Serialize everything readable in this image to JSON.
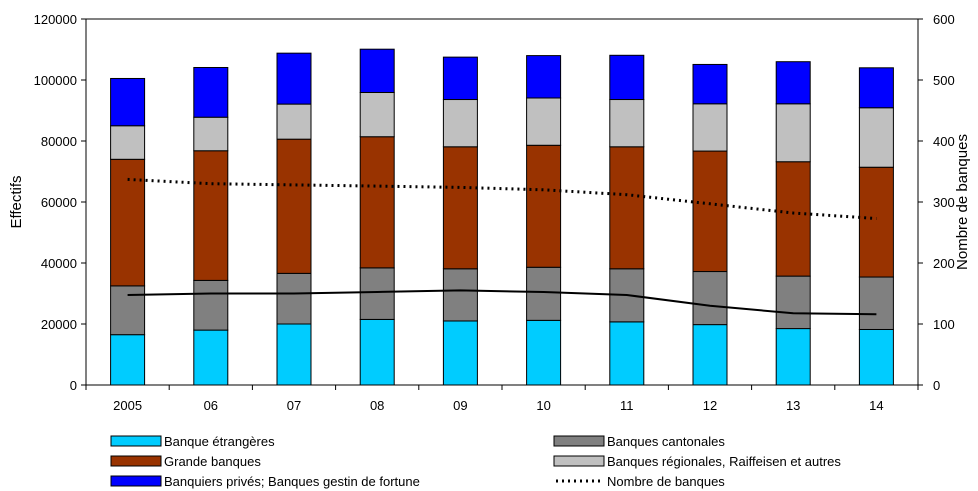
{
  "chart_data": {
    "type": "bar",
    "stacked": true,
    "categories": [
      "2005",
      "06",
      "07",
      "08",
      "09",
      "10",
      "11",
      "12",
      "13",
      "14"
    ],
    "ylabel": "Effectifs",
    "y2label": "Nombre de banques",
    "ylim": [
      0,
      120000
    ],
    "y2lim": [
      0,
      600
    ],
    "yticks": [
      0,
      20000,
      40000,
      60000,
      80000,
      100000,
      120000
    ],
    "y2ticks": [
      0,
      100,
      200,
      300,
      400,
      500,
      600
    ],
    "grid": false,
    "legend_position": "bottom",
    "series": [
      {
        "name": "Banque étrangères",
        "color": "#00ccff",
        "values": [
          16500,
          18000,
          20000,
          21500,
          21000,
          21200,
          20700,
          19800,
          18500,
          18200
        ]
      },
      {
        "name": "Banques cantonales",
        "color": "#808080",
        "values": [
          16000,
          16300,
          16600,
          16900,
          17100,
          17400,
          17400,
          17400,
          17200,
          17200
        ]
      },
      {
        "name": "Grande banques",
        "color": "#993300",
        "values": [
          41500,
          42500,
          44000,
          43000,
          40000,
          40000,
          40000,
          39500,
          37500,
          36000
        ]
      },
      {
        "name": "Banques régionales, Raiffeisen et autres",
        "color": "#c0c0c0",
        "values": [
          11000,
          11000,
          11500,
          14500,
          15500,
          15500,
          15500,
          15500,
          19000,
          19500
        ]
      },
      {
        "name": "Banquiers privés; Banques gestin de fortune",
        "color": "#0000ff",
        "values": [
          15500,
          16300,
          16700,
          14200,
          13900,
          13900,
          14500,
          12900,
          13800,
          13100
        ]
      }
    ],
    "lines": [
      {
        "name": "Nombre de banques",
        "axis": "right",
        "style": "dotted",
        "color": "#000000",
        "values": [
          337,
          330,
          328,
          326,
          324,
          320,
          312,
          297,
          282,
          273
        ]
      },
      {
        "name": "",
        "axis": "left",
        "style": "solid",
        "color": "#000000",
        "values": [
          29500,
          30000,
          30000,
          30500,
          31000,
          30500,
          29500,
          26000,
          23500,
          23200
        ]
      }
    ],
    "legend": [
      {
        "label": "Banque étrangères",
        "kind": "box",
        "color": "#00ccff"
      },
      {
        "label": "Banques cantonales",
        "kind": "box",
        "color": "#808080"
      },
      {
        "label": "Grande banques",
        "kind": "box",
        "color": "#993300"
      },
      {
        "label": "Banques régionales, Raiffeisen et autres",
        "kind": "box",
        "color": "#c0c0c0"
      },
      {
        "label": "Banquiers privés; Banques gestin de fortune",
        "kind": "box",
        "color": "#0000ff"
      },
      {
        "label": "Nombre de banques",
        "kind": "dotted-line",
        "color": "#000000"
      }
    ]
  }
}
